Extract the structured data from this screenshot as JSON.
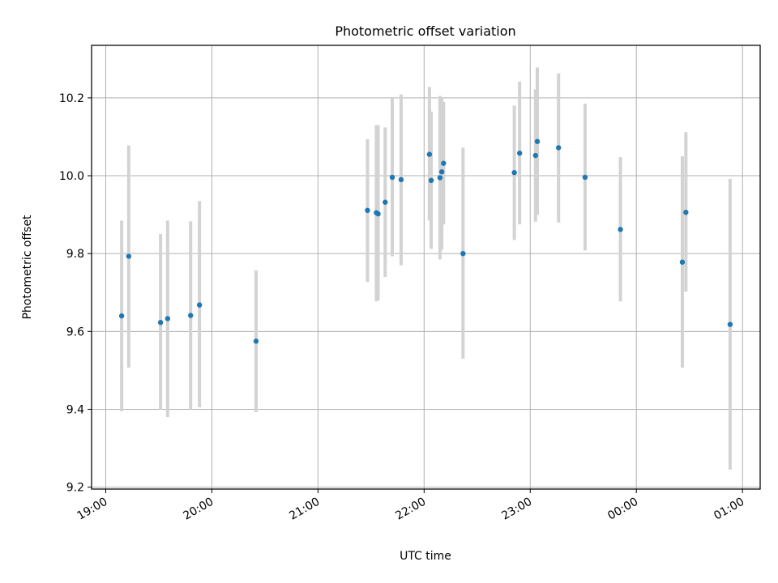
{
  "chart_data": {
    "type": "scatter",
    "title": "Photometric offset variation",
    "xlabel": "UTC time",
    "ylabel": "Photometric offset",
    "x_unit": "hours of day (UTC), continuing past midnight",
    "xlim": [
      "18:52",
      "01:10"
    ],
    "ylim": [
      9.195,
      10.335
    ],
    "x_ticks": [
      {
        "label": "19:00",
        "value": "19:00"
      },
      {
        "label": "20:00",
        "value": "20:00"
      },
      {
        "label": "21:00",
        "value": "21:00"
      },
      {
        "label": "22:00",
        "value": "22:00"
      },
      {
        "label": "23:00",
        "value": "23:00"
      },
      {
        "label": "00:00",
        "value": "00:00"
      },
      {
        "label": "01:00",
        "value": "01:00"
      }
    ],
    "y_ticks": [
      "9.2",
      "9.4",
      "9.6",
      "9.8",
      "10.0",
      "10.2"
    ],
    "grid": true,
    "colors": {
      "point": "#1f77b4",
      "errorbar": "#d3d3d3",
      "grid": "#b0b0b0"
    },
    "points": [
      {
        "time": "19:09",
        "y": 9.64,
        "ylo": 9.395,
        "yhi": 9.885
      },
      {
        "time": "19:13",
        "y": 9.793,
        "ylo": 9.507,
        "yhi": 10.078
      },
      {
        "time": "19:31",
        "y": 9.623,
        "ylo": 9.4,
        "yhi": 9.85
      },
      {
        "time": "19:35",
        "y": 9.633,
        "ylo": 9.38,
        "yhi": 9.885
      },
      {
        "time": "19:48",
        "y": 9.641,
        "ylo": 9.4,
        "yhi": 9.883
      },
      {
        "time": "19:53",
        "y": 9.668,
        "ylo": 9.405,
        "yhi": 9.935
      },
      {
        "time": "20:25",
        "y": 9.575,
        "ylo": 9.393,
        "yhi": 9.757
      },
      {
        "time": "21:28",
        "y": 9.911,
        "ylo": 9.727,
        "yhi": 10.094
      },
      {
        "time": "21:33",
        "y": 9.905,
        "ylo": 9.677,
        "yhi": 10.13
      },
      {
        "time": "21:34",
        "y": 9.902,
        "ylo": 9.68,
        "yhi": 10.13
      },
      {
        "time": "21:38",
        "y": 9.932,
        "ylo": 9.74,
        "yhi": 10.124
      },
      {
        "time": "21:42",
        "y": 9.996,
        "ylo": 9.793,
        "yhi": 10.2
      },
      {
        "time": "21:47",
        "y": 9.99,
        "ylo": 9.77,
        "yhi": 10.209
      },
      {
        "time": "22:03",
        "y": 10.055,
        "ylo": 9.885,
        "yhi": 10.228
      },
      {
        "time": "22:04",
        "y": 9.988,
        "ylo": 9.812,
        "yhi": 10.165
      },
      {
        "time": "22:09",
        "y": 9.995,
        "ylo": 9.785,
        "yhi": 10.205
      },
      {
        "time": "22:10",
        "y": 10.01,
        "ylo": 9.81,
        "yhi": 10.2
      },
      {
        "time": "22:11",
        "y": 10.032,
        "ylo": 9.875,
        "yhi": 10.19
      },
      {
        "time": "22:22",
        "y": 9.8,
        "ylo": 9.53,
        "yhi": 10.072
      },
      {
        "time": "22:51",
        "y": 10.008,
        "ylo": 9.835,
        "yhi": 10.18
      },
      {
        "time": "22:54",
        "y": 10.058,
        "ylo": 9.875,
        "yhi": 10.242
      },
      {
        "time": "23:03",
        "y": 10.052,
        "ylo": 9.882,
        "yhi": 10.222
      },
      {
        "time": "23:04",
        "y": 10.088,
        "ylo": 9.9,
        "yhi": 10.278
      },
      {
        "time": "23:16",
        "y": 10.072,
        "ylo": 9.88,
        "yhi": 10.263
      },
      {
        "time": "23:31",
        "y": 9.996,
        "ylo": 9.808,
        "yhi": 10.185
      },
      {
        "time": "23:51",
        "y": 9.862,
        "ylo": 9.677,
        "yhi": 10.048
      },
      {
        "time": "00:26",
        "y": 9.778,
        "ylo": 9.507,
        "yhi": 10.05
      },
      {
        "time": "00:28",
        "y": 9.906,
        "ylo": 9.702,
        "yhi": 10.112
      },
      {
        "time": "00:53",
        "y": 9.618,
        "ylo": 9.245,
        "yhi": 9.992
      }
    ]
  }
}
